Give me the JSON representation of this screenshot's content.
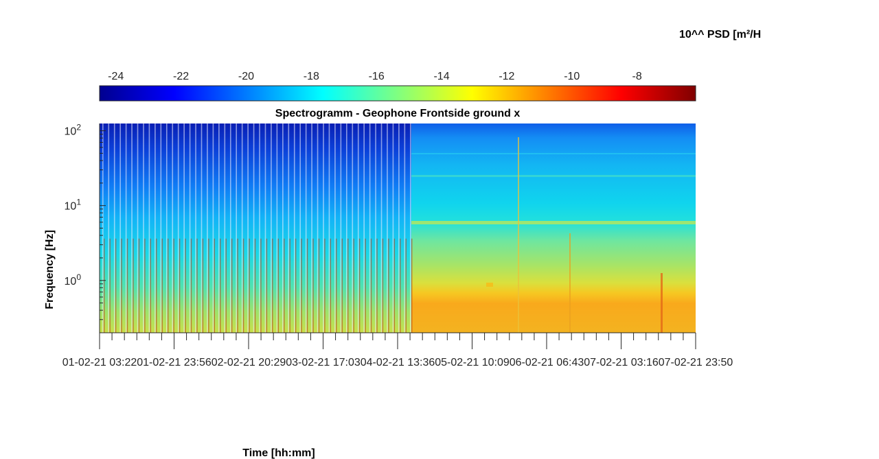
{
  "chart_data": {
    "type": "heatmap",
    "title": "Spectrogramm - Geophone Frontside ground x",
    "xlabel": "Time [hh:mm]",
    "ylabel": "Frequency [Hz]",
    "y_scale": "log",
    "ylim": [
      0.2,
      125
    ],
    "yticks": [
      {
        "value": 1,
        "base": "10",
        "exp": "0"
      },
      {
        "value": 10,
        "base": "10",
        "exp": "1"
      },
      {
        "value": 100,
        "base": "10",
        "exp": "2"
      }
    ],
    "x_tick_labels": [
      "01-02-21 03:22",
      "01-02-21 23:56",
      "02-02-21 20:29",
      "03-02-21 17:03",
      "04-02-21 13:36",
      "05-02-21 10:09",
      "06-02-21 06:43",
      "07-02-21 03:16",
      "07-02-21 23:50"
    ],
    "colorbar": {
      "label": "10^^ PSD [m²/H",
      "colormap": "jet",
      "clim": [
        -24.5,
        -6.2
      ],
      "tick_values": [
        -24,
        -22,
        -20,
        -18,
        -16,
        -14,
        -12,
        -10,
        -8
      ],
      "tick_labels": [
        "-24",
        "-22",
        "-20",
        "-18",
        "-16",
        "-14",
        "-12",
        "-10",
        "-8"
      ]
    },
    "regions": [
      {
        "segment": "intermittent",
        "time_range": [
          "01-02-21 03:22",
          "05-02-21 00:00"
        ],
        "psd_log10_at_100Hz": -21.5,
        "psd_log10_at_10Hz": -18.5,
        "psd_log10_at_1Hz": -16.5,
        "psd_log10_at_0.3Hz": -15
      },
      {
        "segment": "continuous",
        "time_range": [
          "05-02-21 00:00",
          "07-02-21 23:50"
        ],
        "psd_log10_at_100Hz": -19.5,
        "psd_log10_at_10Hz": -16.5,
        "psd_log10_at_1Hz": -14.5,
        "psd_log10_at_0.3Hz": -11.5
      }
    ]
  }
}
